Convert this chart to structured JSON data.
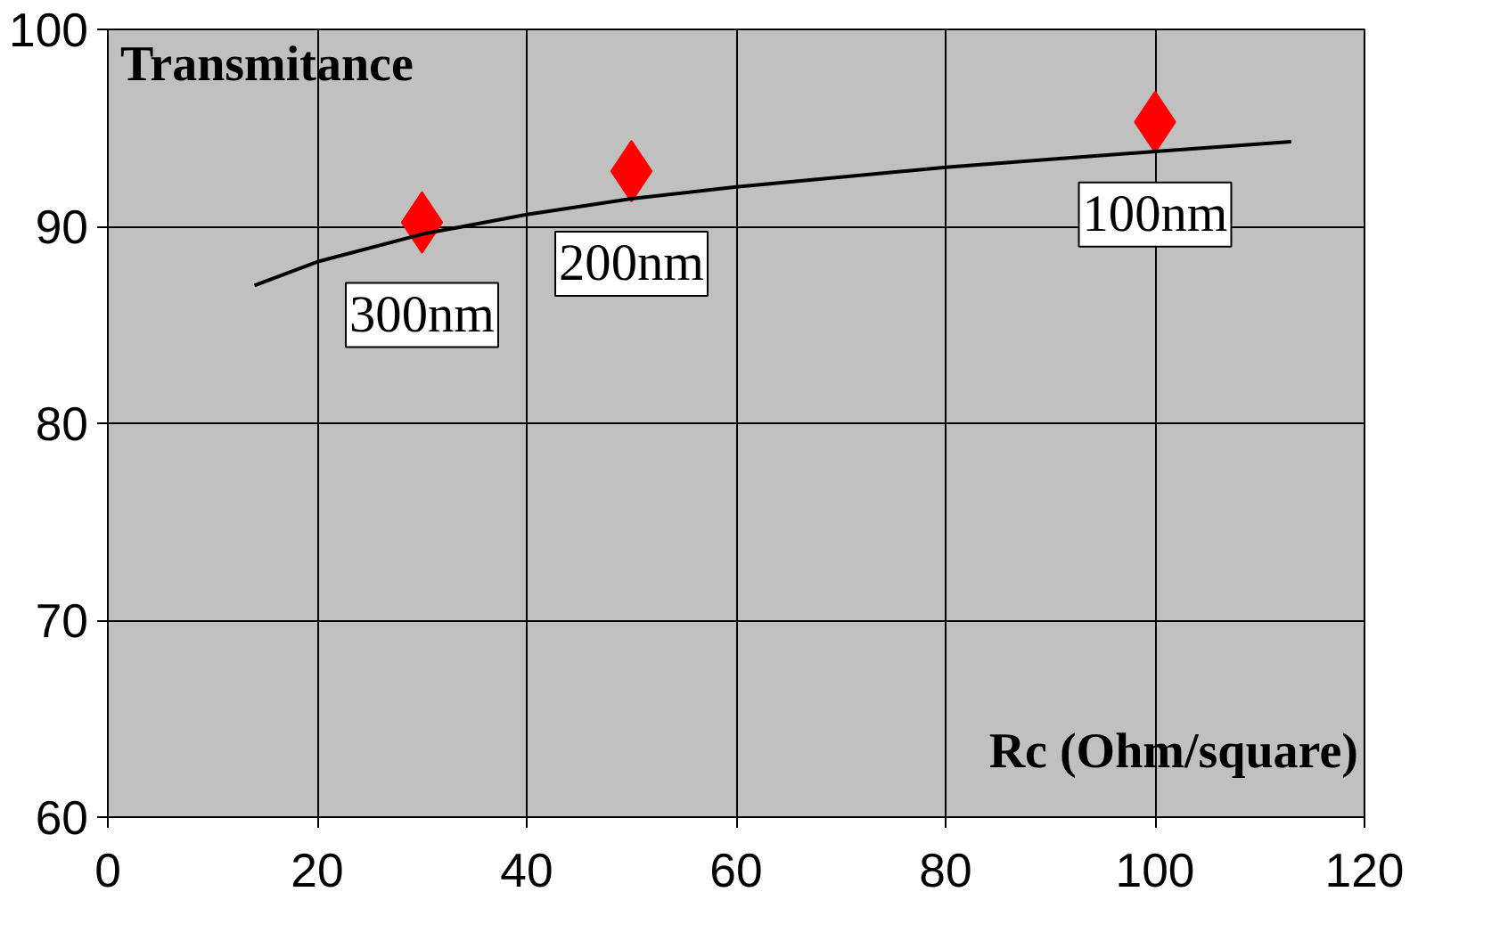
{
  "chart_data": {
    "type": "scatter",
    "xlabel": "Rc (Ohm/square)",
    "ylabel": "Transmitance",
    "xlim": [
      0,
      120
    ],
    "ylim": [
      60,
      100
    ],
    "xticks": [
      0,
      20,
      40,
      60,
      80,
      100,
      120
    ],
    "yticks": [
      60,
      70,
      80,
      90,
      100
    ],
    "grid": true,
    "marker": "diamond",
    "series": [
      {
        "color": "#ff0000",
        "x": [
          30,
          50,
          100
        ],
        "values": [
          90.2,
          92.8,
          95.3
        ]
      },
      {
        "type": "line",
        "color": "#000000",
        "line_style": "solid",
        "marker": "none",
        "x": [
          14,
          20,
          30,
          40,
          50,
          60,
          70,
          80,
          90,
          100,
          113
        ],
        "values": [
          87.0,
          88.2,
          89.6,
          90.6,
          91.4,
          92.0,
          92.5,
          93.0,
          93.4,
          93.8,
          94.3
        ]
      }
    ],
    "annotations": [
      {
        "text": "300nm",
        "x": 30,
        "y": 90.2
      },
      {
        "text": "200nm",
        "x": 50,
        "y": 92.8
      },
      {
        "text": "100nm",
        "x": 100,
        "y": 95.3
      }
    ]
  }
}
